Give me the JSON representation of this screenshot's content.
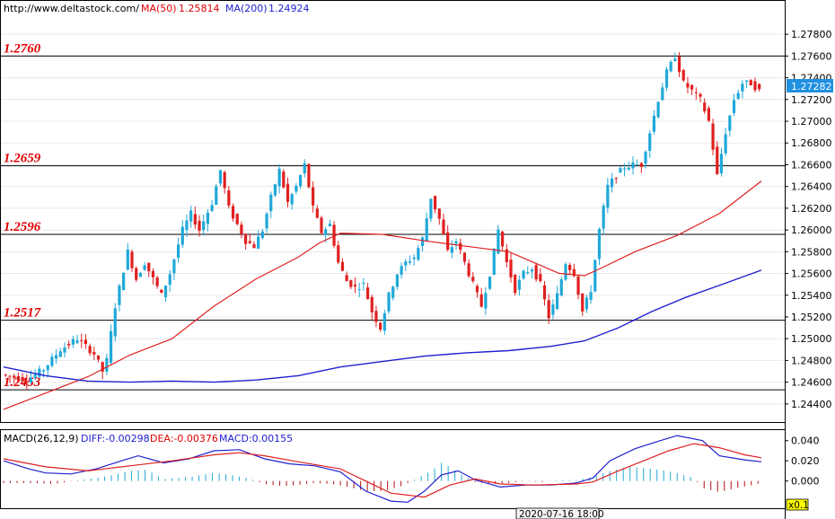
{
  "header": {
    "site": "http://www.deltastock.com/",
    "ma50_label": "MA(50)",
    "ma50_value": "1.25814",
    "ma200_label": "MA(200)",
    "ma200_value": "1.24924"
  },
  "macd_header": {
    "title": "MACD(26,12,9)",
    "diff": "DIFF:-0.00298",
    "dea": "DEA:-0.00376",
    "macd": "MACD:0.00155"
  },
  "footer": {
    "date_readout": "2020-07-16 18:00",
    "zoom_badge": "x0.1"
  },
  "colors": {
    "bull": "#20a8d8",
    "bear": "#e02020",
    "ma50": "#e02020",
    "ma200": "#2020d0",
    "level_text": "#e00000",
    "price_tag_bg": "#2090e0"
  },
  "chart_data": [
    {
      "type": "candlestick",
      "y_ticks": [
        "1.27800",
        "1.27600",
        "1.27400",
        "1.27200",
        "1.27000",
        "1.26800",
        "1.26600",
        "1.26400",
        "1.26200",
        "1.26000",
        "1.25800",
        "1.25600",
        "1.25400",
        "1.25200",
        "1.25000",
        "1.24800",
        "1.24600",
        "1.24400"
      ],
      "ylim": [
        1.2425,
        1.2795
      ],
      "last_price": "1.27282",
      "levels": [
        {
          "label": "1.2760",
          "value": 1.276
        },
        {
          "label": "1.2659",
          "value": 1.2659
        },
        {
          "label": "1.2596",
          "value": 1.2596
        },
        {
          "label": "1.2517",
          "value": 1.2517
        },
        {
          "label": "1.2453",
          "value": 1.2453
        }
      ],
      "price_path": [
        [
          0,
          1.2467
        ],
        [
          6,
          1.2462
        ],
        [
          10,
          1.2472
        ],
        [
          14,
          1.249
        ],
        [
          18,
          1.25
        ],
        [
          22,
          1.2486
        ],
        [
          24,
          1.247
        ],
        [
          25,
          1.248
        ],
        [
          27,
          1.253
        ],
        [
          30,
          1.258
        ],
        [
          32,
          1.2555
        ],
        [
          34,
          1.257
        ],
        [
          36,
          1.2555
        ],
        [
          38,
          1.254
        ],
        [
          40,
          1.256
        ],
        [
          43,
          1.26
        ],
        [
          45,
          1.2615
        ],
        [
          47,
          1.26
        ],
        [
          50,
          1.2625
        ],
        [
          52,
          1.2655
        ],
        [
          54,
          1.262
        ],
        [
          56,
          1.2605
        ],
        [
          58,
          1.259
        ],
        [
          60,
          1.2585
        ],
        [
          62,
          1.26
        ],
        [
          64,
          1.263
        ],
        [
          66,
          1.2655
        ],
        [
          68,
          1.2625
        ],
        [
          70,
          1.264
        ],
        [
          72,
          1.266
        ],
        [
          74,
          1.262
        ],
        [
          76,
          1.2598
        ],
        [
          78,
          1.2605
        ],
        [
          80,
          1.257
        ],
        [
          82,
          1.2553
        ],
        [
          84,
          1.2547
        ],
        [
          86,
          1.255
        ],
        [
          88,
          1.2525
        ],
        [
          90,
          1.251
        ],
        [
          92,
          1.254
        ],
        [
          94,
          1.256
        ],
        [
          96,
          1.257
        ],
        [
          98,
          1.2575
        ],
        [
          100,
          1.2592
        ],
        [
          102,
          1.263
        ],
        [
          104,
          1.261
        ],
        [
          106,
          1.258
        ],
        [
          108,
          1.259
        ],
        [
          110,
          1.257
        ],
        [
          112,
          1.255
        ],
        [
          114,
          1.253
        ],
        [
          116,
          1.256
        ],
        [
          118,
          1.26
        ],
        [
          120,
          1.257
        ],
        [
          122,
          1.2545
        ],
        [
          124,
          1.256
        ],
        [
          126,
          1.2565
        ],
        [
          128,
          1.255
        ],
        [
          130,
          1.252
        ],
        [
          132,
          1.254
        ],
        [
          134,
          1.257
        ],
        [
          136,
          1.256
        ],
        [
          138,
          1.2525
        ],
        [
          140,
          1.2545
        ],
        [
          142,
          1.26
        ],
        [
          144,
          1.264
        ],
        [
          146,
          1.265
        ],
        [
          148,
          1.2658
        ],
        [
          150,
          1.266
        ],
        [
          152,
          1.266
        ],
        [
          154,
          1.269
        ],
        [
          156,
          1.272
        ],
        [
          158,
          1.2745
        ],
        [
          160,
          1.276
        ],
        [
          162,
          1.2735
        ],
        [
          164,
          1.2728
        ],
        [
          166,
          1.272
        ],
        [
          168,
          1.27
        ],
        [
          170,
          1.265
        ],
        [
          172,
          1.269
        ],
        [
          174,
          1.272
        ],
        [
          176,
          1.2735
        ],
        [
          178,
          1.2735
        ],
        [
          180,
          1.2728
        ]
      ],
      "ma50": [
        [
          0,
          1.2435
        ],
        [
          20,
          1.2465
        ],
        [
          30,
          1.2485
        ],
        [
          40,
          1.25
        ],
        [
          50,
          1.253
        ],
        [
          60,
          1.2555
        ],
        [
          70,
          1.2575
        ],
        [
          75,
          1.2588
        ],
        [
          80,
          1.2597
        ],
        [
          90,
          1.2596
        ],
        [
          100,
          1.259
        ],
        [
          110,
          1.2585
        ],
        [
          120,
          1.258
        ],
        [
          126,
          1.257
        ],
        [
          132,
          1.256
        ],
        [
          138,
          1.2558
        ],
        [
          142,
          1.2565
        ],
        [
          150,
          1.258
        ],
        [
          160,
          1.2595
        ],
        [
          170,
          1.2615
        ],
        [
          180,
          1.2645
        ]
      ],
      "ma200": [
        [
          0,
          1.2474
        ],
        [
          10,
          1.2466
        ],
        [
          20,
          1.2461
        ],
        [
          30,
          1.246
        ],
        [
          40,
          1.2461
        ],
        [
          50,
          1.246
        ],
        [
          60,
          1.2462
        ],
        [
          70,
          1.2466
        ],
        [
          80,
          1.2474
        ],
        [
          90,
          1.2479
        ],
        [
          100,
          1.2484
        ],
        [
          110,
          1.2487
        ],
        [
          120,
          1.2489
        ],
        [
          130,
          1.2493
        ],
        [
          138,
          1.2498
        ],
        [
          146,
          1.251
        ],
        [
          154,
          1.2525
        ],
        [
          162,
          1.2538
        ],
        [
          170,
          1.2549
        ],
        [
          180,
          1.2563
        ]
      ]
    },
    {
      "type": "line",
      "title": "MACD(26,12,9)",
      "y_ticks": [
        "0.040",
        "0.020",
        "0.000"
      ],
      "ylim": [
        -0.027,
        0.046
      ],
      "diff": [
        [
          0,
          0.02
        ],
        [
          6,
          0.012
        ],
        [
          10,
          0.008
        ],
        [
          16,
          0.007
        ],
        [
          22,
          0.012
        ],
        [
          28,
          0.02
        ],
        [
          32,
          0.025
        ],
        [
          38,
          0.018
        ],
        [
          44,
          0.022
        ],
        [
          50,
          0.03
        ],
        [
          56,
          0.031
        ],
        [
          62,
          0.022
        ],
        [
          68,
          0.017
        ],
        [
          74,
          0.015
        ],
        [
          80,
          0.009
        ],
        [
          86,
          -0.01
        ],
        [
          92,
          -0.02
        ],
        [
          96,
          -0.021
        ],
        [
          100,
          -0.01
        ],
        [
          104,
          0.006
        ],
        [
          108,
          0.01
        ],
        [
          112,
          0.001
        ],
        [
          118,
          -0.006
        ],
        [
          124,
          -0.004
        ],
        [
          130,
          -0.004
        ],
        [
          136,
          -0.002
        ],
        [
          140,
          0.003
        ],
        [
          144,
          0.02
        ],
        [
          150,
          0.032
        ],
        [
          156,
          0.04
        ],
        [
          160,
          0.045
        ],
        [
          166,
          0.04
        ],
        [
          170,
          0.025
        ],
        [
          176,
          0.021
        ],
        [
          180,
          0.019
        ]
      ],
      "dea": [
        [
          0,
          0.022
        ],
        [
          10,
          0.014
        ],
        [
          20,
          0.01
        ],
        [
          30,
          0.015
        ],
        [
          40,
          0.02
        ],
        [
          50,
          0.026
        ],
        [
          56,
          0.028
        ],
        [
          62,
          0.025
        ],
        [
          70,
          0.019
        ],
        [
          80,
          0.012
        ],
        [
          86,
          0.0
        ],
        [
          92,
          -0.012
        ],
        [
          100,
          -0.016
        ],
        [
          106,
          -0.004
        ],
        [
          112,
          0.002
        ],
        [
          118,
          -0.003
        ],
        [
          126,
          -0.004
        ],
        [
          136,
          -0.003
        ],
        [
          140,
          -0.001
        ],
        [
          146,
          0.01
        ],
        [
          152,
          0.02
        ],
        [
          158,
          0.03
        ],
        [
          164,
          0.037
        ],
        [
          170,
          0.033
        ],
        [
          176,
          0.026
        ],
        [
          180,
          0.023
        ]
      ],
      "hist": [
        [
          0,
          -0.002
        ],
        [
          6,
          -0.002
        ],
        [
          12,
          -0.003
        ],
        [
          18,
          0.001
        ],
        [
          22,
          0.003
        ],
        [
          26,
          0.006
        ],
        [
          30,
          0.01
        ],
        [
          34,
          0.011
        ],
        [
          38,
          0.002
        ],
        [
          44,
          0.004
        ],
        [
          50,
          0.008
        ],
        [
          54,
          0.006
        ],
        [
          58,
          0.003
        ],
        [
          62,
          -0.003
        ],
        [
          66,
          -0.005
        ],
        [
          70,
          -0.004
        ],
        [
          74,
          -0.002
        ],
        [
          78,
          -0.003
        ],
        [
          82,
          -0.006
        ],
        [
          86,
          -0.01
        ],
        [
          90,
          -0.01
        ],
        [
          94,
          -0.006
        ],
        [
          98,
          0.002
        ],
        [
          102,
          0.011
        ],
        [
          104,
          0.018
        ],
        [
          106,
          0.014
        ],
        [
          108,
          0.008
        ],
        [
          112,
          -0.001
        ],
        [
          116,
          -0.003
        ],
        [
          120,
          -0.002
        ],
        [
          124,
          0.0
        ],
        [
          128,
          -0.001
        ],
        [
          132,
          0.001
        ],
        [
          136,
          0.001
        ],
        [
          140,
          0.004
        ],
        [
          144,
          0.01
        ],
        [
          148,
          0.014
        ],
        [
          152,
          0.013
        ],
        [
          156,
          0.011
        ],
        [
          160,
          0.008
        ],
        [
          164,
          0.003
        ],
        [
          166,
          -0.007
        ],
        [
          170,
          -0.011
        ],
        [
          174,
          -0.007
        ],
        [
          178,
          -0.004
        ],
        [
          180,
          -0.002
        ]
      ]
    }
  ]
}
